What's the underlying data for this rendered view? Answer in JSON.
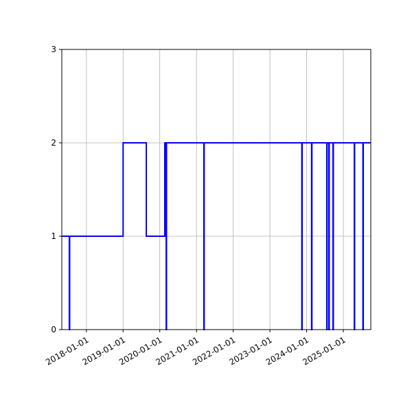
{
  "chart_data": {
    "type": "line",
    "drawstyle": "steps-post",
    "title": "",
    "xlabel": "",
    "ylabel": "",
    "xlim": [
      "2017-05-01",
      "2025-10-01"
    ],
    "ylim": [
      0,
      3
    ],
    "grid": true,
    "x_ticks": [
      "2018-01-01",
      "2019-01-01",
      "2020-01-01",
      "2021-01-01",
      "2022-01-01",
      "2023-01-01",
      "2024-01-01",
      "2025-01-01"
    ],
    "y_ticks": [
      0,
      1,
      2,
      3
    ],
    "series": [
      {
        "color": "#0000ff",
        "points": [
          {
            "x": "2017-05-01",
            "y": 1
          },
          {
            "x": "2017-07-15",
            "y": 0
          },
          {
            "x": "2017-07-18",
            "y": 1
          },
          {
            "x": "2019-01-01",
            "y": 2
          },
          {
            "x": "2019-08-20",
            "y": 1
          },
          {
            "x": "2020-02-20",
            "y": 2
          },
          {
            "x": "2020-03-05",
            "y": 0
          },
          {
            "x": "2020-03-08",
            "y": 2
          },
          {
            "x": "2021-03-15",
            "y": 0
          },
          {
            "x": "2021-03-18",
            "y": 2
          },
          {
            "x": "2023-11-15",
            "y": 0
          },
          {
            "x": "2023-11-18",
            "y": 2
          },
          {
            "x": "2024-02-20",
            "y": 0
          },
          {
            "x": "2024-02-23",
            "y": 2
          },
          {
            "x": "2024-07-20",
            "y": 0
          },
          {
            "x": "2024-07-23",
            "y": 2
          },
          {
            "x": "2024-08-10",
            "y": 0
          },
          {
            "x": "2024-08-13",
            "y": 2
          },
          {
            "x": "2024-09-20",
            "y": 0
          },
          {
            "x": "2024-09-23",
            "y": 2
          },
          {
            "x": "2025-04-20",
            "y": 0
          },
          {
            "x": "2025-04-23",
            "y": 2
          },
          {
            "x": "2025-07-15",
            "y": 0
          },
          {
            "x": "2025-07-18",
            "y": 2
          },
          {
            "x": "2025-10-01",
            "y": 2
          }
        ]
      }
    ]
  }
}
